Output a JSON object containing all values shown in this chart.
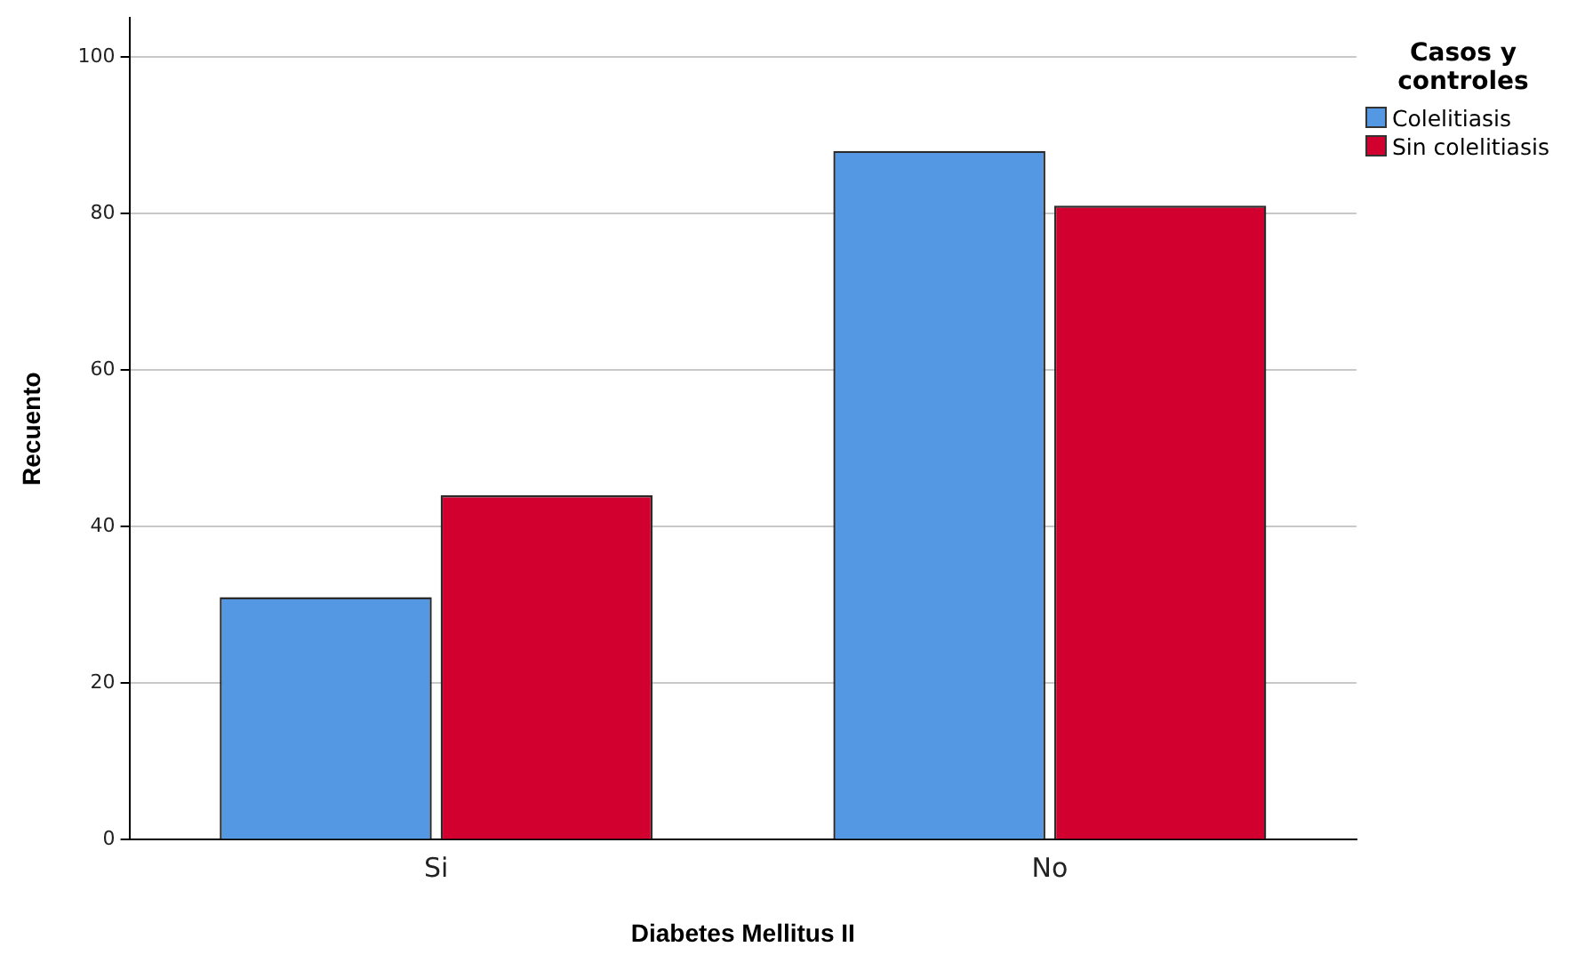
{
  "chart_data": {
    "type": "bar",
    "xlabel": "Diabetes Mellitus II",
    "ylabel": "Recuento",
    "legend_title": "Casos y controles",
    "categories": [
      "Si",
      "No"
    ],
    "series": [
      {
        "name": "Colelitiasis",
        "color": "#5497e3",
        "values": [
          31,
          88
        ]
      },
      {
        "name": "Sin colelitiasis",
        "color": "#d2002e",
        "values": [
          44,
          81
        ]
      }
    ],
    "ylim": [
      0,
      105
    ],
    "yticks": [
      0,
      20,
      40,
      60,
      80,
      100
    ],
    "grid": "y",
    "legend": "top right"
  }
}
